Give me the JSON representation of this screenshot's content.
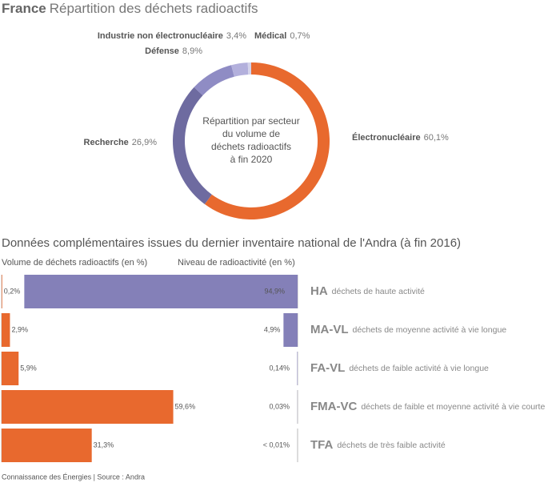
{
  "chart_data": [
    {
      "type": "donut",
      "title_bold": "France",
      "title": "Répartition des déchets radioactifs",
      "center_text": [
        "Répartition par secteur",
        "du volume de",
        "déchets radioactifs",
        "à fin 2020"
      ],
      "categories": [
        "Électronucléaire",
        "Recherche",
        "Défense",
        "Industrie non électronucléaire",
        "Médical"
      ],
      "values": [
        60.1,
        26.9,
        8.9,
        3.4,
        0.7
      ],
      "value_labels": [
        "60,1%",
        "26,9%",
        "8,9%",
        "3,4%",
        "0,7%"
      ],
      "colors": [
        "#e8692e",
        "#6e6ba0",
        "#8f8cc4",
        "#b3b0dc",
        "#d3d2ea"
      ]
    },
    {
      "type": "butterfly",
      "title": "Données complémentaires issues du dernier inventaire national de l'Andra (à fin 2016)",
      "categories": [
        "HA",
        "MA-VL",
        "FA-VL",
        "FMA-VC",
        "TFA"
      ],
      "descriptions": [
        "déchets de haute activité",
        "déchets de moyenne activité à vie longue",
        "déchets de faible activité à vie longue",
        "déchets de faible et moyenne activité à vie courte",
        "déchets de très faible activité"
      ],
      "xlim": [
        0,
        100
      ],
      "series": [
        {
          "name": "Volume de déchets radioactifs (en %)",
          "color": "#e8692e",
          "values": [
            0.2,
            2.9,
            5.9,
            59.6,
            31.3
          ],
          "value_labels": [
            "0,2%",
            "2,9%",
            "5,9%",
            "59,6%",
            "31,3%"
          ]
        },
        {
          "name": "Niveau de radioactivité (en %)",
          "color": "#8480b8",
          "values": [
            94.9,
            4.9,
            0.14,
            0.03,
            0.01
          ],
          "value_labels": [
            "94,9%",
            "4,9%",
            "0,14%",
            "0,03%",
            "< 0,01%"
          ]
        }
      ]
    }
  ],
  "footer": "Connaissance des Énergies | Source : Andra"
}
